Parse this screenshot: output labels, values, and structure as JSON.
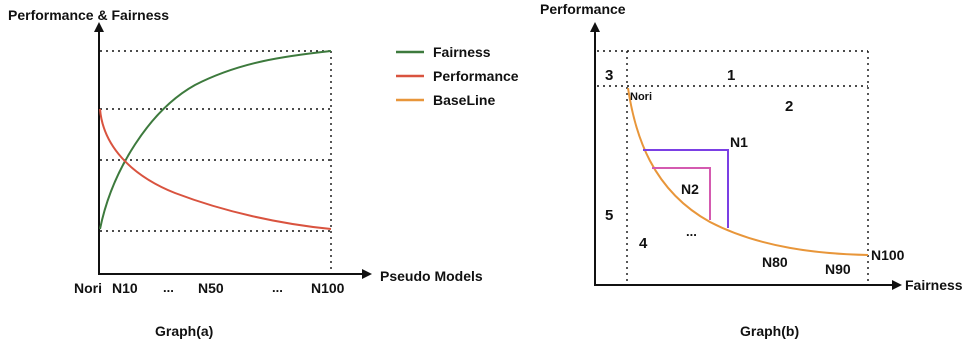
{
  "graph_a": {
    "y_axis_label": "Performance & Fairness",
    "x_axis_label": "Pseudo Models",
    "x_ticks": [
      "Nori",
      "N10",
      "...",
      "N50",
      "...",
      "N100"
    ],
    "caption": "Graph(a)",
    "legend": [
      {
        "label": "Fairness",
        "color": "#3d7a3d"
      },
      {
        "label": "Performance",
        "color": "#d9533f"
      },
      {
        "label": "BaseLine",
        "color": "#e8963a"
      }
    ]
  },
  "graph_b": {
    "y_axis_label": "Performance",
    "x_axis_label": "Fairness",
    "caption": "Graph(b)",
    "region_labels": [
      "1",
      "2",
      "3",
      "4",
      "5"
    ],
    "point_labels": {
      "nori": "Nori",
      "n1": "N1",
      "n2": "N2",
      "ellipsis": "...",
      "n80": "N80",
      "n90": "N90",
      "n100": "N100"
    },
    "colors": {
      "baseline": "#e8963a",
      "n1_box": "#7b3fe4",
      "n2_box": "#d45ab0"
    }
  }
}
